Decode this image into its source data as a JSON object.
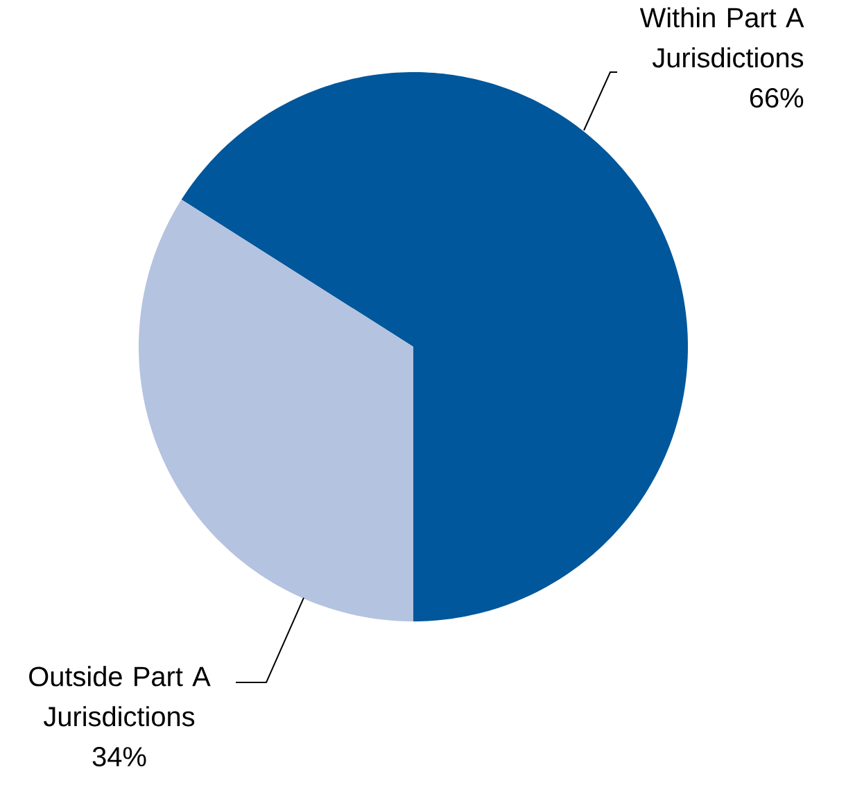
{
  "chart_data": {
    "type": "pie",
    "categories": [
      "Within Part A Jurisdictions",
      "Outside Part A Jurisdictions"
    ],
    "values": [
      66,
      34
    ],
    "colors": [
      "#00579b",
      "#b4c3df"
    ],
    "value_labels": [
      "66%",
      "34%"
    ]
  }
}
